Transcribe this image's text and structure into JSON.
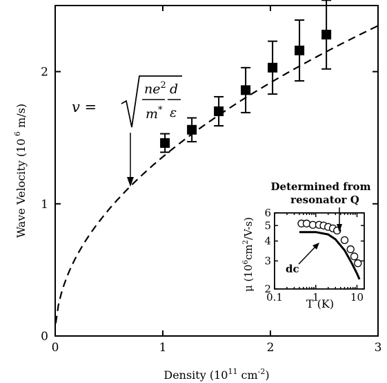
{
  "chart_data": [
    {
      "type": "scatter",
      "xlabel": {
        "text": "Density (10",
        "sup": "11",
        "text2": " cm",
        "sup2": "-2",
        "text3": ")"
      },
      "ylabel": {
        "text": "Wave Velocity (10",
        "sup": " 6",
        "text2": " m/s)"
      },
      "xlim": [
        0,
        3
      ],
      "ylim": [
        0,
        2.5
      ],
      "x_ticks": [
        0,
        1,
        2,
        3
      ],
      "y_ticks": [
        0,
        1,
        2
      ],
      "x_tick_labels": [
        "0",
        "1",
        "2",
        "3"
      ],
      "y_tick_labels": [
        "0",
        "1",
        "2"
      ],
      "series": [
        {
          "kind": "points-with-errorbars",
          "marker": "filled-square",
          "points": [
            {
              "x": 1.02,
              "y": 1.46,
              "err": 0.07
            },
            {
              "x": 1.27,
              "y": 1.56,
              "err": 0.09
            },
            {
              "x": 1.52,
              "y": 1.7,
              "err": 0.11
            },
            {
              "x": 1.77,
              "y": 1.86,
              "err": 0.17
            },
            {
              "x": 2.02,
              "y": 2.03,
              "err": 0.2
            },
            {
              "x": 2.27,
              "y": 2.16,
              "err": 0.23
            },
            {
              "x": 2.52,
              "y": 2.28,
              "err": 0.26
            }
          ]
        },
        {
          "kind": "dashed-curve",
          "form": "sqrt",
          "coefficient": 1.355
        }
      ],
      "annotations": [
        {
          "lhs": "v =",
          "num": "ne",
          "num_sup": "2",
          "den": "m",
          "den_sup": "*",
          "frac2_num": "d",
          "frac2_den": "ε",
          "arrow_to": {
            "x": 0.7,
            "y": 1.13
          }
        }
      ]
    },
    {
      "type": "scatter",
      "inset": true,
      "scale": "log-log",
      "xlabel": "T (K)",
      "ylabel": {
        "text": "μ (10",
        "sup": "6",
        "text2": "cm",
        "sup2": "2",
        "text3": "/V-s)"
      },
      "xlim": [
        0.1,
        15
      ],
      "ylim": [
        2,
        6
      ],
      "x_tick_labels": [
        "0.1",
        "1",
        "10"
      ],
      "y_tick_labels": [
        "2",
        "3",
        "4",
        "5",
        "6"
      ],
      "series": [
        {
          "kind": "open-circles",
          "points": [
            {
              "x": 0.45,
              "y": 5.15
            },
            {
              "x": 0.6,
              "y": 5.15
            },
            {
              "x": 0.85,
              "y": 5.05
            },
            {
              "x": 1.2,
              "y": 5.05
            },
            {
              "x": 1.55,
              "y": 5.0
            },
            {
              "x": 2.0,
              "y": 4.9
            },
            {
              "x": 2.6,
              "y": 4.8
            },
            {
              "x": 3.3,
              "y": 4.65
            },
            {
              "x": 5.0,
              "y": 4.05
            },
            {
              "x": 7.0,
              "y": 3.55
            },
            {
              "x": 8.6,
              "y": 3.2
            },
            {
              "x": 10.5,
              "y": 2.9
            }
          ]
        },
        {
          "kind": "solid-curve",
          "points": [
            {
              "x": 0.4,
              "y": 4.55
            },
            {
              "x": 1.0,
              "y": 4.55
            },
            {
              "x": 2.0,
              "y": 4.4
            },
            {
              "x": 3.0,
              "y": 4.1
            },
            {
              "x": 5.0,
              "y": 3.5
            },
            {
              "x": 7.5,
              "y": 2.9
            },
            {
              "x": 10.0,
              "y": 2.5
            },
            {
              "x": 11.5,
              "y": 2.3
            }
          ]
        }
      ],
      "annotations": [
        {
          "lines": [
            "Determined from",
            "resonator Q"
          ],
          "arrow_to": {
            "x": 5.0,
            "y": 4.05
          }
        },
        {
          "text": "dc",
          "arrow_to": {
            "x": 3.0,
            "y": 4.1
          }
        }
      ]
    }
  ]
}
